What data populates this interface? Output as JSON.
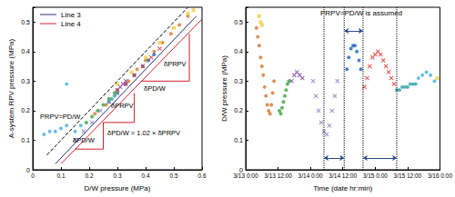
{
  "chart_data": [
    {
      "type": "scatter",
      "xlabel": "D/W pressure (MPa)",
      "ylabel": "A-system RPV pressure (MPa)",
      "xlim": [
        0,
        0.6
      ],
      "xticks": [
        0,
        0.1,
        0.2,
        0.3,
        0.4,
        0.5,
        0.6
      ],
      "ylim": [
        0,
        0.55
      ],
      "yticks": [
        0,
        0.1,
        0.2,
        0.3,
        0.4,
        0.5
      ],
      "grid": false,
      "legend": "upper left",
      "annotations": [
        "PRPV=PD/W",
        "δPRPV",
        "δPD/W",
        "δPRPV",
        "δPD/W",
        "δPD/W = 1.02 × δPRPV"
      ],
      "series": [
        {
          "type": "line",
          "color": "#000000",
          "line_style": "dashed",
          "x": [
            0.05,
            0.55
          ],
          "values": [
            0.05,
            0.55
          ]
        },
        {
          "name": "Line 3",
          "type": "line",
          "color": "#203070",
          "line_style": "solid",
          "x": [
            0.08,
            0.58
          ],
          "values": [
            0.02,
            0.52
          ]
        },
        {
          "name": "Line 4",
          "type": "line",
          "color": "#d02030",
          "line_style": "solid",
          "x": [
            0.1,
            0.6
          ],
          "values": [
            0.02,
            0.51
          ]
        },
        {
          "type": "line",
          "color": "#d02030",
          "line_style": "solid",
          "x": [
            0.385,
            0.555,
            0.555,
            null,
            0.25,
            0.36,
            0.36,
            null,
            0.15,
            0.25,
            0.25
          ],
          "values": [
            0.3,
            0.3,
            0.46,
            null,
            0.16,
            0.16,
            0.26,
            null,
            0.07,
            0.07,
            0.16
          ]
        },
        {
          "type": "scatter",
          "color": "#d4762a",
          "marker": "circle",
          "x": [
            0.22,
            0.26,
            0.3,
            0.34,
            0.37,
            0.4,
            0.43,
            0.46,
            0.49,
            0.52,
            0.55
          ],
          "values": [
            0.19,
            0.22,
            0.27,
            0.3,
            0.34,
            0.37,
            0.4,
            0.43,
            0.46,
            0.49,
            0.52
          ]
        },
        {
          "type": "scatter",
          "color": "#f0d040",
          "marker": "square",
          "x": [
            0.3,
            0.35,
            0.4,
            0.45,
            0.5,
            0.55,
            0.57
          ],
          "values": [
            0.29,
            0.33,
            0.38,
            0.43,
            0.48,
            0.53,
            0.54
          ]
        },
        {
          "type": "scatter",
          "color": "#3aa040",
          "marker": "circle",
          "x": [
            0.19,
            0.21,
            0.23,
            0.25,
            0.27,
            0.29
          ],
          "values": [
            0.16,
            0.18,
            0.2,
            0.22,
            0.24,
            0.26
          ]
        },
        {
          "type": "scatter",
          "color": "#7a3a9a",
          "marker": "x",
          "x": [
            0.3,
            0.31,
            0.32,
            0.33
          ],
          "values": [
            0.27,
            0.28,
            0.29,
            0.3
          ]
        },
        {
          "type": "scatter",
          "color": "#2060c0",
          "marker": "circle",
          "x": [
            0.33,
            0.36,
            0.39,
            0.41,
            0.43
          ],
          "values": [
            0.29,
            0.32,
            0.35,
            0.37,
            0.39
          ]
        },
        {
          "type": "scatter",
          "color": "#e03030",
          "marker": "x",
          "x": [
            0.3,
            0.33,
            0.36,
            0.39,
            0.42,
            0.45
          ],
          "values": [
            0.26,
            0.29,
            0.32,
            0.35,
            0.38,
            0.41
          ]
        },
        {
          "type": "scatter",
          "color": "#30a0a0",
          "marker": "circle",
          "x": [
            0.27,
            0.28,
            0.29,
            0.3
          ],
          "values": [
            0.23,
            0.24,
            0.25,
            0.26
          ]
        },
        {
          "type": "scatter",
          "color": "#40b0e0",
          "marker": "circle",
          "x": [
            0.04,
            0.06,
            0.08,
            0.1,
            0.12,
            0.12,
            0.15,
            0.17
          ],
          "values": [
            0.12,
            0.13,
            0.13,
            0.14,
            0.15,
            0.29,
            0.13,
            0.15
          ]
        },
        {
          "type": "scatter",
          "color": "#8080c0",
          "marker": "x",
          "x": [
            0.15,
            0.18,
            0.21,
            0.24,
            0.27
          ],
          "values": [
            0.1,
            0.13,
            0.16,
            0.2,
            0.23
          ]
        }
      ]
    },
    {
      "type": "scatter",
      "xlabel": "Time (date hr:min)",
      "ylabel": "D/W pressure (MPa)",
      "xlim": [
        0,
        72
      ],
      "xticks": [
        {
          "value": 0,
          "label": "3/13 0:00"
        },
        {
          "value": 12,
          "label": "3/13 12:00"
        },
        {
          "value": 24,
          "label": "3/14 0:00"
        },
        {
          "value": 36,
          "label": "3/14 12:00"
        },
        {
          "value": 48,
          "label": "3/15 0:00"
        },
        {
          "value": 60,
          "label": "3/15 12:00"
        },
        {
          "value": 72,
          "label": "3/16 0:00"
        }
      ],
      "ylim": [
        0,
        0.55
      ],
      "yticks": [
        0,
        0.1,
        0.2,
        0.3,
        0.4,
        0.5
      ],
      "grid": false,
      "annotations": [
        "PRPV=PD/W is assumed"
      ],
      "spans": [
        {
          "x": [
            29,
            36.5
          ],
          "y": 0.04
        },
        {
          "x": [
            36.5,
            43.5
          ],
          "y": 0.47
        },
        {
          "x": [
            43.5,
            56
          ],
          "y": 0.04
        }
      ],
      "series": [
        {
          "type": "line",
          "color": "#000000",
          "line_style": "dotted",
          "x": [
            29,
            29,
            null,
            36.5,
            36.5,
            null,
            43.5,
            43.5,
            null,
            56,
            56
          ],
          "values": [
            0,
            0.55,
            null,
            0,
            0.55,
            null,
            0,
            0.55,
            null,
            0,
            0.55
          ]
        },
        {
          "type": "scatter",
          "color": "#d4762a",
          "marker": "circle",
          "x": [
            4,
            4.5,
            5,
            5.5,
            6,
            6.5,
            7,
            7.5,
            8,
            8.5,
            9,
            9.5,
            10,
            10.5
          ],
          "values": [
            0.48,
            0.45,
            0.42,
            0.38,
            0.35,
            0.32,
            0.28,
            0.25,
            0.22,
            0.2,
            0.19,
            0.22,
            0.26,
            0.3
          ]
        },
        {
          "type": "scatter",
          "color": "#f0d040",
          "marker": "square",
          "x": [
            5,
            5.5,
            6,
            71
          ],
          "values": [
            0.52,
            0.5,
            0.49,
            0.31
          ]
        },
        {
          "type": "scatter",
          "color": "#3aa040",
          "marker": "circle",
          "x": [
            12.5,
            13,
            13.5,
            14,
            14.5,
            15,
            15.5,
            16
          ],
          "values": [
            0.2,
            0.19,
            0.21,
            0.23,
            0.25,
            0.27,
            0.29,
            0.3
          ]
        },
        {
          "type": "scatter",
          "color": "#7a3a9a",
          "marker": "x",
          "x": [
            17,
            18,
            19,
            20,
            21
          ],
          "values": [
            0.3,
            0.32,
            0.33,
            0.32,
            0.31
          ]
        },
        {
          "type": "scatter",
          "color": "#8080c0",
          "marker": "x",
          "x": [
            25,
            26,
            27,
            28,
            29,
            30,
            31,
            32,
            33,
            34
          ],
          "values": [
            0.3,
            0.25,
            0.2,
            0.16,
            0.13,
            0.12,
            0.15,
            0.2,
            0.25,
            0.3
          ]
        },
        {
          "type": "scatter",
          "color": "#2060c0",
          "marker": "circle",
          "x": [
            37.5,
            38.2,
            39,
            39.8,
            40.5,
            41.2,
            42,
            42.7
          ],
          "values": [
            0.34,
            0.38,
            0.41,
            0.42,
            0.42,
            0.4,
            0.37,
            0.34
          ]
        },
        {
          "type": "scatter",
          "color": "#e03030",
          "marker": "x",
          "x": [
            44,
            45,
            46,
            47,
            48,
            49,
            50,
            51,
            52,
            53,
            54,
            55
          ],
          "values": [
            0.28,
            0.31,
            0.35,
            0.38,
            0.39,
            0.4,
            0.39,
            0.37,
            0.35,
            0.33,
            0.31,
            0.29
          ]
        },
        {
          "type": "scatter",
          "color": "#30a0a0",
          "marker": "circle",
          "x": [
            56,
            57,
            58,
            59,
            60,
            61,
            62,
            63
          ],
          "values": [
            0.27,
            0.27,
            0.28,
            0.28,
            0.28,
            0.29,
            0.29,
            0.29
          ]
        },
        {
          "type": "scatter",
          "color": "#40b0e0",
          "marker": "circle",
          "x": [
            64,
            65.5,
            67,
            68.5,
            70
          ],
          "values": [
            0.31,
            0.32,
            0.33,
            0.32,
            0.3
          ]
        }
      ]
    }
  ]
}
